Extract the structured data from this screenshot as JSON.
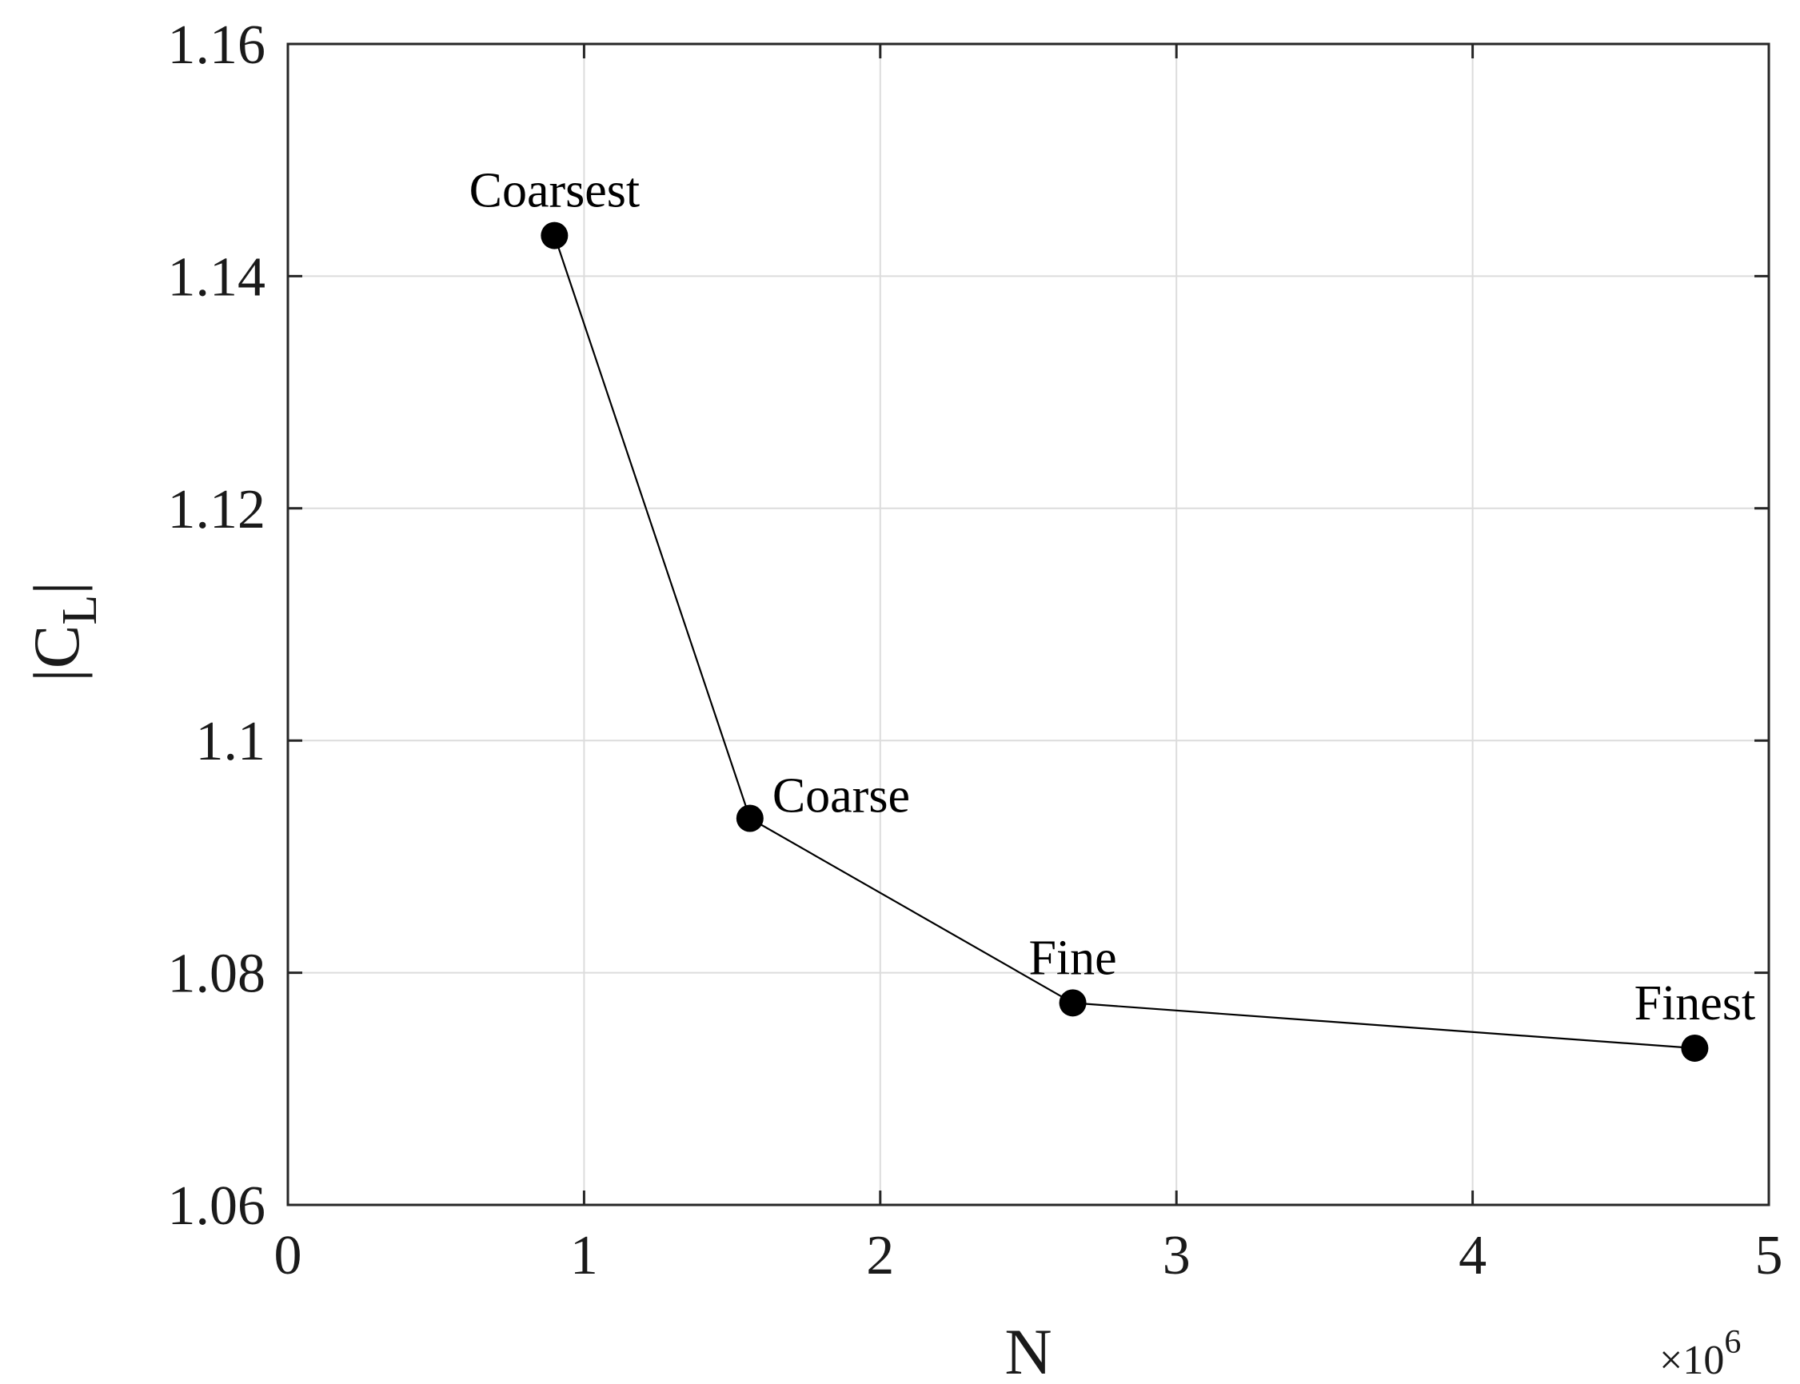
{
  "chart_data": {
    "type": "line",
    "xlabel": "N",
    "ylabel": "|C",
    "ylabel_sub": "L",
    "ylabel_end": "|",
    "x_exponent": "×10",
    "x_exponent_power": "6",
    "xlim": [
      0,
      5
    ],
    "ylim": [
      1.06,
      1.16
    ],
    "x_scale_multiplier": 1000000,
    "grid": true,
    "legend": "none",
    "x_ticks": [
      0,
      1,
      2,
      3,
      4,
      5
    ],
    "x_tick_labels": [
      "0",
      "1",
      "2",
      "3",
      "4",
      "5"
    ],
    "y_ticks": [
      1.06,
      1.08,
      1.1,
      1.12,
      1.14,
      1.16
    ],
    "y_tick_labels": [
      "1.06",
      "1.08",
      "1.1",
      "1.12",
      "1.14",
      "1.16"
    ],
    "series": [
      {
        "x": [
          0.9,
          1.56,
          2.65,
          4.75
        ],
        "y": [
          1.1435,
          1.0933,
          1.0774,
          1.0735
        ],
        "point_labels": [
          "Coarsest",
          "Coarse",
          "Fine",
          "Finest"
        ],
        "label_positions": [
          "above",
          "right",
          "above",
          "above"
        ],
        "color": "#000000",
        "marker": "filled-circle"
      }
    ]
  }
}
